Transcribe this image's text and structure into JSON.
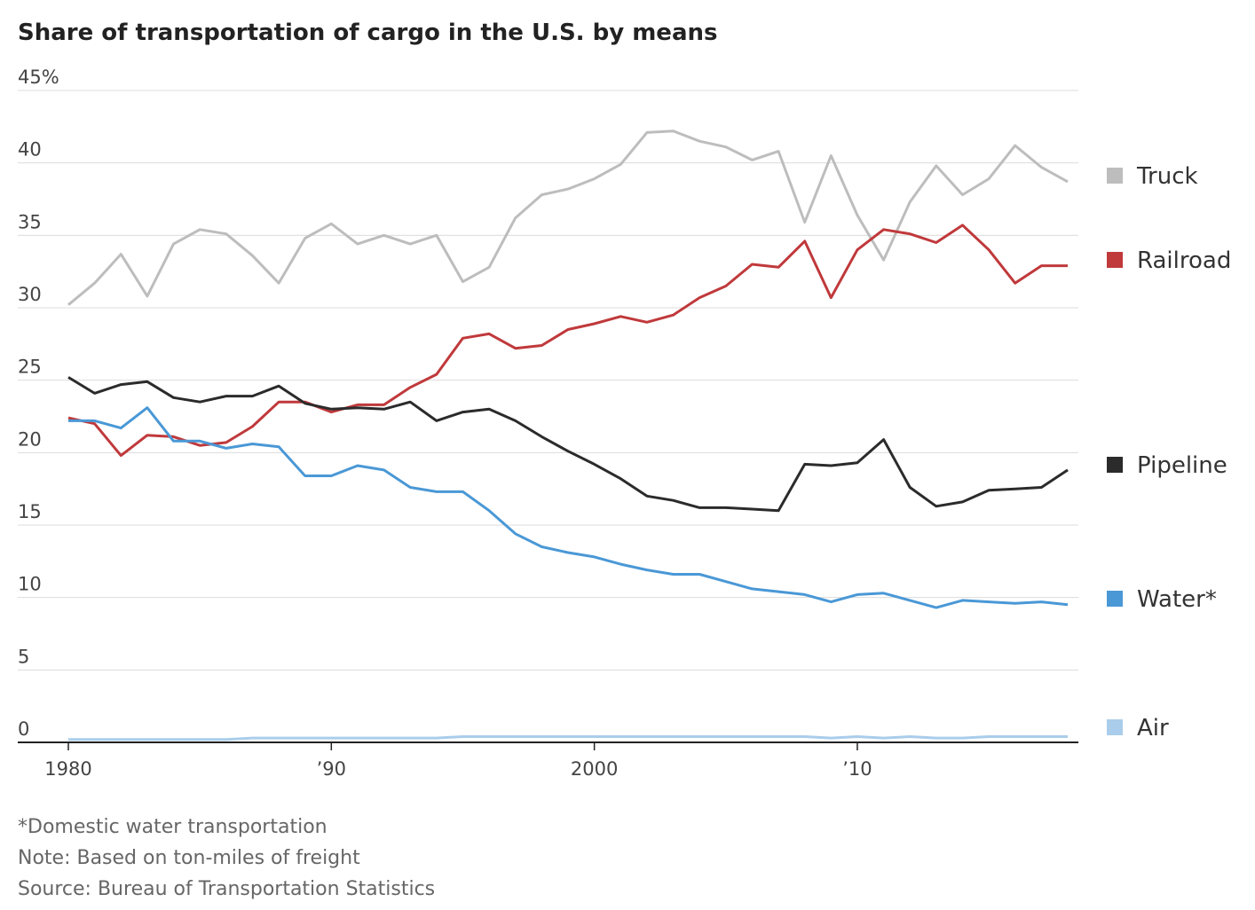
{
  "chart_data": {
    "type": "line",
    "title": "Share of transportation of cargo in the U.S. by means",
    "x": [
      1980,
      1981,
      1982,
      1983,
      1984,
      1985,
      1986,
      1987,
      1988,
      1989,
      1990,
      1991,
      1992,
      1993,
      1994,
      1995,
      1996,
      1997,
      1998,
      1999,
      2000,
      2001,
      2002,
      2003,
      2004,
      2005,
      2006,
      2007,
      2008,
      2009,
      2010,
      2011,
      2012,
      2013,
      2014,
      2015,
      2016,
      2017,
      2018
    ],
    "series": [
      {
        "name": "Truck",
        "color": "#bdbdbd",
        "values": [
          30.2,
          31.7,
          33.7,
          30.8,
          34.4,
          35.4,
          35.1,
          33.6,
          31.7,
          34.8,
          35.8,
          34.4,
          35.0,
          34.4,
          35.0,
          31.8,
          32.8,
          36.2,
          37.8,
          38.2,
          38.9,
          39.9,
          42.1,
          42.2,
          41.5,
          41.1,
          40.2,
          40.8,
          35.9,
          40.5,
          36.4,
          33.3,
          37.3,
          39.8,
          37.8,
          38.9,
          41.2,
          39.7,
          38.7
        ]
      },
      {
        "name": "Railroad",
        "color": "#c0393b",
        "values": [
          22.4,
          22.0,
          19.8,
          21.2,
          21.1,
          20.5,
          20.7,
          21.8,
          23.5,
          23.5,
          22.8,
          23.3,
          23.3,
          24.5,
          25.4,
          27.9,
          28.2,
          27.2,
          27.4,
          28.5,
          28.9,
          29.4,
          29.0,
          29.5,
          30.7,
          31.5,
          33.0,
          32.8,
          34.6,
          30.7,
          34.0,
          35.4,
          35.1,
          34.5,
          35.7,
          34.0,
          31.7,
          32.9,
          32.9
        ]
      },
      {
        "name": "Pipeline",
        "color": "#2b2b2b",
        "values": [
          25.2,
          24.1,
          24.7,
          24.9,
          23.8,
          23.5,
          23.9,
          23.9,
          24.6,
          23.4,
          23.0,
          23.1,
          23.0,
          23.5,
          22.2,
          22.8,
          23.0,
          22.2,
          21.1,
          20.1,
          19.2,
          18.2,
          17.0,
          16.7,
          16.2,
          16.2,
          16.1,
          16.0,
          19.2,
          19.1,
          19.3,
          20.9,
          17.6,
          16.3,
          16.6,
          17.4,
          17.5,
          17.6,
          18.8
        ]
      },
      {
        "name": "Water*",
        "color": "#4a98d6",
        "values": [
          22.2,
          22.2,
          21.7,
          23.1,
          20.8,
          20.8,
          20.3,
          20.6,
          20.4,
          18.4,
          18.4,
          19.1,
          18.8,
          17.6,
          17.3,
          17.3,
          16.0,
          14.4,
          13.5,
          13.1,
          12.8,
          12.3,
          11.9,
          11.6,
          11.6,
          11.1,
          10.6,
          10.4,
          10.2,
          9.7,
          10.2,
          10.3,
          9.8,
          9.3,
          9.8,
          9.7,
          9.6,
          9.7,
          9.5
        ]
      },
      {
        "name": "Air",
        "color": "#a9cdeb",
        "values": [
          0.2,
          0.2,
          0.2,
          0.2,
          0.2,
          0.2,
          0.2,
          0.3,
          0.3,
          0.3,
          0.3,
          0.3,
          0.3,
          0.3,
          0.3,
          0.4,
          0.4,
          0.4,
          0.4,
          0.4,
          0.4,
          0.4,
          0.4,
          0.4,
          0.4,
          0.4,
          0.4,
          0.4,
          0.4,
          0.3,
          0.4,
          0.3,
          0.4,
          0.3,
          0.3,
          0.4,
          0.4,
          0.4,
          0.4
        ]
      }
    ],
    "xlim": [
      1980,
      2018
    ],
    "xticks": [
      1980,
      {
        "value": 1990,
        "label": "’90"
      },
      2000,
      {
        "value": 2010,
        "label": "’10"
      }
    ],
    "ylim": [
      0,
      45
    ],
    "yticks": [
      0,
      5,
      10,
      15,
      20,
      25,
      30,
      35,
      40,
      {
        "value": 45,
        "label": "45%"
      }
    ],
    "grid": true,
    "notes": [
      "*Domestic water transportation",
      "Note: Based on ton-miles of freight",
      "Source: Bureau of Transportation Statistics"
    ]
  }
}
